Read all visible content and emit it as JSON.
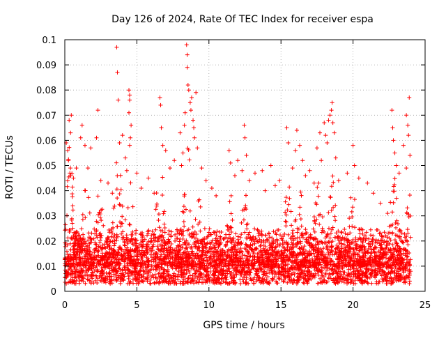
{
  "chart_data": {
    "type": "scatter",
    "title": "Day 126 of 2024, Rate Of TEC Index for receiver espa",
    "xlabel": "GPS time / hours",
    "ylabel": "ROTI / TECUs",
    "xlim": [
      0,
      25
    ],
    "ylim": [
      0,
      0.1
    ],
    "xticks": [
      0,
      5,
      10,
      15,
      20,
      25
    ],
    "yticks": [
      0,
      0.01,
      0.02,
      0.03,
      0.04,
      0.05,
      0.06,
      0.07,
      0.08,
      0.09,
      0.1
    ],
    "xtick_labels": [
      "0",
      "5",
      "10",
      "15",
      "20",
      "25"
    ],
    "ytick_labels": [
      "0",
      "0.01",
      "0.02",
      "0.03",
      "0.04",
      "0.05",
      "0.06",
      "0.07",
      "0.08",
      "0.09",
      "0.1"
    ],
    "grid": true,
    "marker": "+",
    "marker_color": "#ff0000",
    "series": [
      {
        "name": "ROTI",
        "points": [
          [
            0.1,
            0.059
          ],
          [
            0.2,
            0.056
          ],
          [
            0.3,
            0.068
          ],
          [
            0.45,
            0.07
          ],
          [
            0.4,
            0.063
          ],
          [
            0.25,
            0.052
          ],
          [
            0.35,
            0.047
          ],
          [
            0.6,
            0.045
          ],
          [
            0.8,
            0.049
          ],
          [
            1.1,
            0.061
          ],
          [
            1.2,
            0.066
          ],
          [
            1.4,
            0.058
          ],
          [
            1.8,
            0.057
          ],
          [
            1.6,
            0.049
          ],
          [
            2.3,
            0.072
          ],
          [
            2.2,
            0.061
          ],
          [
            2.5,
            0.044
          ],
          [
            3.0,
            0.043
          ],
          [
            3.3,
            0.039
          ],
          [
            3.6,
            0.097
          ],
          [
            3.65,
            0.087
          ],
          [
            3.7,
            0.076
          ],
          [
            3.8,
            0.059
          ],
          [
            4.0,
            0.062
          ],
          [
            4.2,
            0.053
          ],
          [
            4.3,
            0.048
          ],
          [
            4.45,
            0.08
          ],
          [
            4.5,
            0.078
          ],
          [
            4.5,
            0.076
          ],
          [
            4.45,
            0.071
          ],
          [
            4.6,
            0.066
          ],
          [
            4.55,
            0.061
          ],
          [
            4.5,
            0.058
          ],
          [
            5.0,
            0.047
          ],
          [
            5.3,
            0.041
          ],
          [
            5.8,
            0.045
          ],
          [
            6.2,
            0.039
          ],
          [
            6.6,
            0.077
          ],
          [
            6.65,
            0.074
          ],
          [
            6.7,
            0.065
          ],
          [
            6.8,
            0.058
          ],
          [
            7.0,
            0.056
          ],
          [
            7.3,
            0.049
          ],
          [
            7.6,
            0.052
          ],
          [
            8.0,
            0.063
          ],
          [
            8.1,
            0.05
          ],
          [
            8.2,
            0.055
          ],
          [
            8.3,
            0.066
          ],
          [
            8.35,
            0.071
          ],
          [
            8.45,
            0.098
          ],
          [
            8.5,
            0.094
          ],
          [
            8.5,
            0.089
          ],
          [
            8.55,
            0.082
          ],
          [
            8.6,
            0.08
          ],
          [
            8.7,
            0.075
          ],
          [
            8.8,
            0.077
          ],
          [
            8.75,
            0.072
          ],
          [
            8.9,
            0.068
          ],
          [
            8.95,
            0.065
          ],
          [
            9.0,
            0.061
          ],
          [
            9.1,
            0.079
          ],
          [
            9.2,
            0.057
          ],
          [
            9.5,
            0.049
          ],
          [
            9.8,
            0.044
          ],
          [
            10.2,
            0.041
          ],
          [
            10.5,
            0.038
          ],
          [
            11.4,
            0.056
          ],
          [
            11.5,
            0.051
          ],
          [
            11.8,
            0.046
          ],
          [
            12.0,
            0.052
          ],
          [
            12.3,
            0.048
          ],
          [
            12.45,
            0.066
          ],
          [
            12.5,
            0.061
          ],
          [
            12.6,
            0.054
          ],
          [
            12.8,
            0.044
          ],
          [
            13.2,
            0.047
          ],
          [
            13.7,
            0.048
          ],
          [
            13.9,
            0.04
          ],
          [
            14.3,
            0.05
          ],
          [
            14.6,
            0.042
          ],
          [
            14.9,
            0.044
          ],
          [
            15.4,
            0.065
          ],
          [
            15.5,
            0.059
          ],
          [
            15.8,
            0.049
          ],
          [
            16.0,
            0.056
          ],
          [
            16.1,
            0.064
          ],
          [
            16.3,
            0.058
          ],
          [
            16.5,
            0.052
          ],
          [
            16.7,
            0.046
          ],
          [
            17.0,
            0.048
          ],
          [
            17.3,
            0.043
          ],
          [
            17.5,
            0.057
          ],
          [
            17.7,
            0.063
          ],
          [
            17.8,
            0.052
          ],
          [
            18.0,
            0.067
          ],
          [
            18.1,
            0.062
          ],
          [
            18.2,
            0.059
          ],
          [
            18.3,
            0.068
          ],
          [
            18.4,
            0.07
          ],
          [
            18.5,
            0.072
          ],
          [
            18.55,
            0.075
          ],
          [
            18.6,
            0.067
          ],
          [
            18.7,
            0.063
          ],
          [
            18.8,
            0.053
          ],
          [
            19.0,
            0.044
          ],
          [
            19.6,
            0.047
          ],
          [
            20.0,
            0.058
          ],
          [
            20.1,
            0.05
          ],
          [
            20.4,
            0.045
          ],
          [
            21.0,
            0.043
          ],
          [
            21.4,
            0.039
          ],
          [
            21.9,
            0.035
          ],
          [
            22.4,
            0.031
          ],
          [
            22.7,
            0.072
          ],
          [
            22.75,
            0.065
          ],
          [
            22.8,
            0.06
          ],
          [
            22.9,
            0.055
          ],
          [
            23.0,
            0.05
          ],
          [
            23.2,
            0.047
          ],
          [
            23.5,
            0.058
          ],
          [
            23.7,
            0.07
          ],
          [
            23.8,
            0.066
          ],
          [
            23.85,
            0.062
          ],
          [
            23.9,
            0.077
          ],
          [
            23.95,
            0.054
          ],
          [
            23.7,
            0.049
          ]
        ]
      }
    ],
    "dense_band": {
      "x_range": [
        0,
        24
      ],
      "typical_floor": 0.003,
      "typical_ceiling": 0.025,
      "peaks": [
        {
          "x": 0.3,
          "y": 0.058
        },
        {
          "x": 1.5,
          "y": 0.045
        },
        {
          "x": 2.4,
          "y": 0.04
        },
        {
          "x": 3.7,
          "y": 0.06
        },
        {
          "x": 4.5,
          "y": 0.055
        },
        {
          "x": 6.6,
          "y": 0.055
        },
        {
          "x": 8.5,
          "y": 0.06
        },
        {
          "x": 9.3,
          "y": 0.045
        },
        {
          "x": 11.5,
          "y": 0.04
        },
        {
          "x": 12.5,
          "y": 0.043
        },
        {
          "x": 15.5,
          "y": 0.045
        },
        {
          "x": 16.2,
          "y": 0.05
        },
        {
          "x": 17.6,
          "y": 0.048
        },
        {
          "x": 18.5,
          "y": 0.052
        },
        {
          "x": 20.0,
          "y": 0.045
        },
        {
          "x": 22.8,
          "y": 0.048
        },
        {
          "x": 23.8,
          "y": 0.046
        }
      ]
    }
  }
}
